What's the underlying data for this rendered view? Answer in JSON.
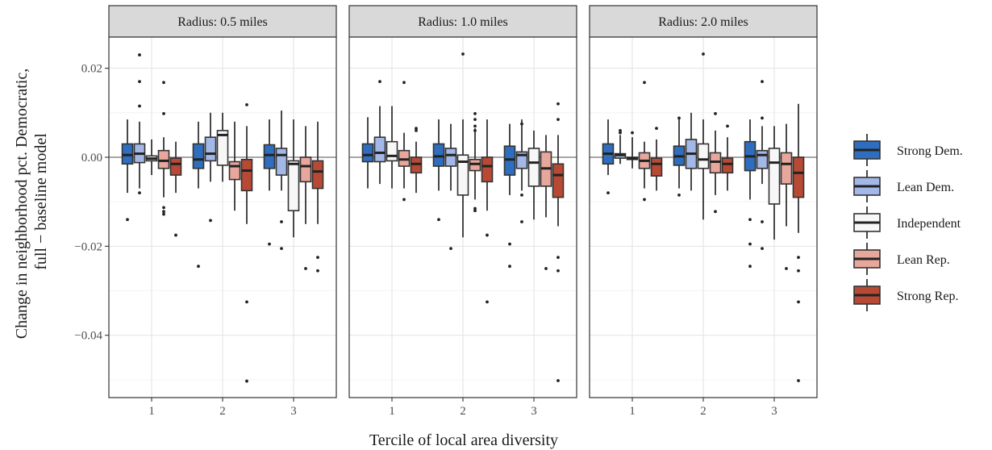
{
  "chart_data": {
    "type": "boxplot",
    "xlabel": "Tercile of local area diversity",
    "ylabel_lines": [
      "Change in neighborhood pct. Democratic,",
      "full − baseline model"
    ],
    "ylim": [
      -0.054,
      0.027
    ],
    "y_ticks": [
      {
        "value": 0.02,
        "label": "0.02"
      },
      {
        "value": 0.0,
        "label": "0.00"
      },
      {
        "value": -0.02,
        "label": "−0.02"
      },
      {
        "value": -0.04,
        "label": "−0.04"
      }
    ],
    "x_ticks": [
      "1",
      "2",
      "3"
    ],
    "reference_line": 0,
    "grid": true,
    "legend_position": "right",
    "groups": [
      {
        "name": "Strong Dem.",
        "color": "#2f6ebf"
      },
      {
        "name": "Lean Dem.",
        "color": "#a3b8e6"
      },
      {
        "name": "Independent",
        "color": "#f7f7f7"
      },
      {
        "name": "Lean Rep.",
        "color": "#e8a79c"
      },
      {
        "name": "Strong Rep.",
        "color": "#b84a35"
      }
    ],
    "panels": [
      {
        "title": "Radius: 0.5 miles",
        "terciles": [
          [
            {
              "wlo": -0.008,
              "q1": -0.0015,
              "med": 0.0005,
              "q3": 0.003,
              "whi": 0.0085,
              "out": [
                -0.014
              ]
            },
            {
              "wlo": -0.007,
              "q1": -0.0012,
              "med": 0.0008,
              "q3": 0.003,
              "whi": 0.008,
              "out": [
                0.023,
                0.017,
                0.0115,
                -0.008
              ]
            },
            {
              "wlo": -0.004,
              "q1": -0.0008,
              "med": -0.0003,
              "q3": 0.0003,
              "whi": 0.004,
              "out": []
            },
            {
              "wlo": -0.009,
              "q1": -0.0025,
              "med": -0.0008,
              "q3": 0.0015,
              "whi": 0.0045,
              "out": [
                0.0168,
                0.0098,
                -0.0113,
                -0.0122,
                -0.0128
              ]
            },
            {
              "wlo": -0.008,
              "q1": -0.004,
              "med": -0.0015,
              "q3": -0.0002,
              "whi": 0.0035,
              "out": [
                -0.0175
              ]
            }
          ],
          [
            {
              "wlo": -0.007,
              "q1": -0.0025,
              "med": -0.0005,
              "q3": 0.003,
              "whi": 0.008,
              "out": [
                -0.0245
              ]
            },
            {
              "wlo": -0.0055,
              "q1": -0.0008,
              "med": 0.0008,
              "q3": 0.0045,
              "whi": 0.01,
              "out": [
                -0.0142
              ]
            },
            {
              "wlo": -0.0055,
              "q1": -0.0018,
              "med": 0.005,
              "q3": 0.006,
              "whi": 0.01,
              "out": []
            },
            {
              "wlo": -0.012,
              "q1": -0.005,
              "med": -0.002,
              "q3": -0.001,
              "whi": 0.008,
              "out": []
            },
            {
              "wlo": -0.015,
              "q1": -0.0075,
              "med": -0.003,
              "q3": -0.0005,
              "whi": 0.007,
              "out": [
                0.0118,
                -0.0325,
                -0.0503
              ]
            }
          ],
          [
            {
              "wlo": -0.0075,
              "q1": -0.0025,
              "med": 0.0005,
              "q3": 0.0028,
              "whi": 0.0085,
              "out": [
                -0.0195
              ]
            },
            {
              "wlo": -0.0075,
              "q1": -0.004,
              "med": 0.0005,
              "q3": 0.002,
              "whi": 0.0105,
              "out": [
                -0.0145,
                -0.0205
              ]
            },
            {
              "wlo": -0.018,
              "q1": -0.012,
              "med": -0.0015,
              "q3": -0.0008,
              "whi": 0.0085,
              "out": []
            },
            {
              "wlo": -0.015,
              "q1": -0.0055,
              "med": -0.002,
              "q3": 0.0,
              "whi": 0.007,
              "out": [
                -0.025
              ]
            },
            {
              "wlo": -0.015,
              "q1": -0.007,
              "med": -0.0032,
              "q3": -0.0008,
              "whi": 0.008,
              "out": [
                -0.0225,
                -0.0255
              ]
            }
          ]
        ]
      },
      {
        "title": "Radius: 1.0 miles",
        "terciles": [
          [
            {
              "wlo": -0.007,
              "q1": -0.001,
              "med": 0.0005,
              "q3": 0.003,
              "whi": 0.009,
              "out": []
            },
            {
              "wlo": -0.006,
              "q1": -0.001,
              "med": 0.001,
              "q3": 0.0045,
              "whi": 0.0115,
              "out": [
                0.017
              ]
            },
            {
              "wlo": -0.007,
              "q1": -0.0008,
              "med": 0.0003,
              "q3": 0.0035,
              "whi": 0.0115,
              "out": []
            },
            {
              "wlo": -0.007,
              "q1": -0.002,
              "med": -0.0005,
              "q3": 0.0015,
              "whi": 0.0055,
              "out": [
                0.0168,
                -0.0095
              ]
            },
            {
              "wlo": -0.008,
              "q1": -0.0035,
              "med": -0.0015,
              "q3": 0.0,
              "whi": 0.0035,
              "out": [
                0.0065,
                0.006
              ]
            }
          ],
          [
            {
              "wlo": -0.0075,
              "q1": -0.002,
              "med": 0.0002,
              "q3": 0.003,
              "whi": 0.0085,
              "out": [
                -0.014
              ]
            },
            {
              "wlo": -0.0075,
              "q1": -0.002,
              "med": 0.0005,
              "q3": 0.002,
              "whi": 0.0075,
              "out": [
                -0.0205
              ]
            },
            {
              "wlo": -0.018,
              "q1": -0.0085,
              "med": -0.001,
              "q3": 0.0005,
              "whi": 0.0085,
              "out": [
                0.0232
              ]
            },
            {
              "wlo": -0.0095,
              "q1": -0.003,
              "med": -0.0015,
              "q3": -0.0005,
              "whi": 0.0065,
              "out": [
                0.0098,
                0.0085,
                0.007,
                0.006,
                -0.0115,
                -0.012
              ]
            },
            {
              "wlo": -0.012,
              "q1": -0.0055,
              "med": -0.002,
              "q3": 0.0,
              "whi": 0.0085,
              "out": [
                -0.0175,
                -0.0325
              ]
            }
          ],
          [
            {
              "wlo": -0.0085,
              "q1": -0.004,
              "med": -0.0005,
              "q3": 0.0025,
              "whi": 0.0075,
              "out": [
                -0.0195,
                -0.0245
              ]
            },
            {
              "wlo": -0.0075,
              "q1": -0.0025,
              "med": 0.0005,
              "q3": 0.0012,
              "whi": 0.0085,
              "out": [
                0.0075,
                -0.0085,
                -0.0145
              ]
            },
            {
              "wlo": -0.014,
              "q1": -0.0065,
              "med": -0.0012,
              "q3": 0.002,
              "whi": 0.006,
              "out": []
            },
            {
              "wlo": -0.0135,
              "q1": -0.0065,
              "med": -0.0025,
              "q3": 0.0012,
              "whi": 0.005,
              "out": [
                -0.025
              ]
            },
            {
              "wlo": -0.0155,
              "q1": -0.009,
              "med": -0.004,
              "q3": -0.0015,
              "whi": 0.005,
              "out": [
                0.012,
                0.0085,
                -0.0225,
                -0.0255,
                -0.0502
              ]
            }
          ]
        ]
      },
      {
        "title": "Radius: 2.0 miles",
        "terciles": [
          [
            {
              "wlo": -0.004,
              "q1": -0.0015,
              "med": 0.0008,
              "q3": 0.003,
              "whi": 0.0085,
              "out": [
                -0.008
              ]
            },
            {
              "wlo": -0.0015,
              "q1": -0.0002,
              "med": 0.0005,
              "q3": 0.0008,
              "whi": 0.005,
              "out": [
                0.006,
                0.0055
              ]
            },
            {
              "wlo": -0.0025,
              "q1": -0.0005,
              "med": -0.0003,
              "q3": 0.0,
              "whi": 0.0045,
              "out": [
                0.0055
              ]
            },
            {
              "wlo": -0.007,
              "q1": -0.0025,
              "med": -0.0008,
              "q3": 0.001,
              "whi": 0.0035,
              "out": [
                0.0168,
                -0.0095
              ]
            },
            {
              "wlo": -0.0075,
              "q1": -0.0042,
              "med": -0.0015,
              "q3": -0.0002,
              "whi": 0.004,
              "out": [
                0.0065
              ]
            }
          ],
          [
            {
              "wlo": -0.007,
              "q1": -0.0018,
              "med": 0.0002,
              "q3": 0.0025,
              "whi": 0.0085,
              "out": [
                0.0088,
                -0.0085
              ]
            },
            {
              "wlo": -0.0075,
              "q1": -0.0025,
              "med": 0.0008,
              "q3": 0.004,
              "whi": 0.01,
              "out": []
            },
            {
              "wlo": -0.014,
              "q1": -0.0025,
              "med": -0.0005,
              "q3": 0.003,
              "whi": 0.0085,
              "out": [
                0.0232
              ]
            },
            {
              "wlo": -0.0085,
              "q1": -0.0035,
              "med": -0.001,
              "q3": 0.001,
              "whi": 0.006,
              "out": [
                0.0098,
                -0.0122
              ]
            },
            {
              "wlo": -0.0075,
              "q1": -0.0035,
              "med": -0.0015,
              "q3": -0.0002,
              "whi": 0.0045,
              "out": [
                0.007
              ]
            }
          ],
          [
            {
              "wlo": -0.0095,
              "q1": -0.003,
              "med": 0.0002,
              "q3": 0.0035,
              "whi": 0.0085,
              "out": [
                -0.014,
                -0.0195,
                -0.0245
              ]
            },
            {
              "wlo": -0.006,
              "q1": -0.0025,
              "med": 0.0005,
              "q3": 0.0015,
              "whi": 0.007,
              "out": [
                0.017,
                0.0088,
                -0.0145,
                -0.0205
              ]
            },
            {
              "wlo": -0.0185,
              "q1": -0.0105,
              "med": -0.0012,
              "q3": 0.002,
              "whi": 0.007,
              "out": []
            },
            {
              "wlo": -0.0155,
              "q1": -0.006,
              "med": -0.0015,
              "q3": 0.001,
              "whi": 0.0075,
              "out": [
                -0.025
              ]
            },
            {
              "wlo": -0.017,
              "q1": -0.009,
              "med": -0.0035,
              "q3": 0.0,
              "whi": 0.012,
              "out": [
                -0.0225,
                -0.0255,
                -0.0325,
                -0.0502
              ]
            }
          ]
        ]
      }
    ]
  }
}
